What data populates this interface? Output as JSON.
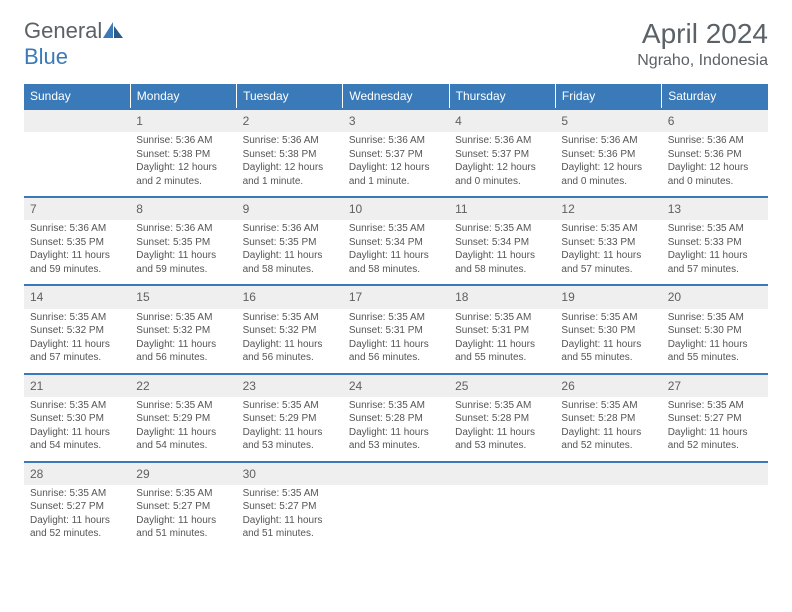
{
  "brand": {
    "part1": "General",
    "part2": "Blue"
  },
  "title": "April 2024",
  "location": "Ngraho, Indonesia",
  "colors": {
    "header_bg": "#3a7ab8",
    "header_text": "#ffffff",
    "daynum_bg": "#efefef",
    "text": "#555555",
    "title_text": "#5a6268",
    "page_bg": "#ffffff"
  },
  "typography": {
    "month_title_fontsize": 28,
    "location_fontsize": 16,
    "weekday_fontsize": 12,
    "daynum_fontsize": 12,
    "cell_fontsize": 10
  },
  "weekdays": [
    "Sunday",
    "Monday",
    "Tuesday",
    "Wednesday",
    "Thursday",
    "Friday",
    "Saturday"
  ],
  "weeks": [
    [
      null,
      {
        "n": "1",
        "sr": "Sunrise: 5:36 AM",
        "ss": "Sunset: 5:38 PM",
        "d1": "Daylight: 12 hours",
        "d2": "and 2 minutes."
      },
      {
        "n": "2",
        "sr": "Sunrise: 5:36 AM",
        "ss": "Sunset: 5:38 PM",
        "d1": "Daylight: 12 hours",
        "d2": "and 1 minute."
      },
      {
        "n": "3",
        "sr": "Sunrise: 5:36 AM",
        "ss": "Sunset: 5:37 PM",
        "d1": "Daylight: 12 hours",
        "d2": "and 1 minute."
      },
      {
        "n": "4",
        "sr": "Sunrise: 5:36 AM",
        "ss": "Sunset: 5:37 PM",
        "d1": "Daylight: 12 hours",
        "d2": "and 0 minutes."
      },
      {
        "n": "5",
        "sr": "Sunrise: 5:36 AM",
        "ss": "Sunset: 5:36 PM",
        "d1": "Daylight: 12 hours",
        "d2": "and 0 minutes."
      },
      {
        "n": "6",
        "sr": "Sunrise: 5:36 AM",
        "ss": "Sunset: 5:36 PM",
        "d1": "Daylight: 12 hours",
        "d2": "and 0 minutes."
      }
    ],
    [
      {
        "n": "7",
        "sr": "Sunrise: 5:36 AM",
        "ss": "Sunset: 5:35 PM",
        "d1": "Daylight: 11 hours",
        "d2": "and 59 minutes."
      },
      {
        "n": "8",
        "sr": "Sunrise: 5:36 AM",
        "ss": "Sunset: 5:35 PM",
        "d1": "Daylight: 11 hours",
        "d2": "and 59 minutes."
      },
      {
        "n": "9",
        "sr": "Sunrise: 5:36 AM",
        "ss": "Sunset: 5:35 PM",
        "d1": "Daylight: 11 hours",
        "d2": "and 58 minutes."
      },
      {
        "n": "10",
        "sr": "Sunrise: 5:35 AM",
        "ss": "Sunset: 5:34 PM",
        "d1": "Daylight: 11 hours",
        "d2": "and 58 minutes."
      },
      {
        "n": "11",
        "sr": "Sunrise: 5:35 AM",
        "ss": "Sunset: 5:34 PM",
        "d1": "Daylight: 11 hours",
        "d2": "and 58 minutes."
      },
      {
        "n": "12",
        "sr": "Sunrise: 5:35 AM",
        "ss": "Sunset: 5:33 PM",
        "d1": "Daylight: 11 hours",
        "d2": "and 57 minutes."
      },
      {
        "n": "13",
        "sr": "Sunrise: 5:35 AM",
        "ss": "Sunset: 5:33 PM",
        "d1": "Daylight: 11 hours",
        "d2": "and 57 minutes."
      }
    ],
    [
      {
        "n": "14",
        "sr": "Sunrise: 5:35 AM",
        "ss": "Sunset: 5:32 PM",
        "d1": "Daylight: 11 hours",
        "d2": "and 57 minutes."
      },
      {
        "n": "15",
        "sr": "Sunrise: 5:35 AM",
        "ss": "Sunset: 5:32 PM",
        "d1": "Daylight: 11 hours",
        "d2": "and 56 minutes."
      },
      {
        "n": "16",
        "sr": "Sunrise: 5:35 AM",
        "ss": "Sunset: 5:32 PM",
        "d1": "Daylight: 11 hours",
        "d2": "and 56 minutes."
      },
      {
        "n": "17",
        "sr": "Sunrise: 5:35 AM",
        "ss": "Sunset: 5:31 PM",
        "d1": "Daylight: 11 hours",
        "d2": "and 56 minutes."
      },
      {
        "n": "18",
        "sr": "Sunrise: 5:35 AM",
        "ss": "Sunset: 5:31 PM",
        "d1": "Daylight: 11 hours",
        "d2": "and 55 minutes."
      },
      {
        "n": "19",
        "sr": "Sunrise: 5:35 AM",
        "ss": "Sunset: 5:30 PM",
        "d1": "Daylight: 11 hours",
        "d2": "and 55 minutes."
      },
      {
        "n": "20",
        "sr": "Sunrise: 5:35 AM",
        "ss": "Sunset: 5:30 PM",
        "d1": "Daylight: 11 hours",
        "d2": "and 55 minutes."
      }
    ],
    [
      {
        "n": "21",
        "sr": "Sunrise: 5:35 AM",
        "ss": "Sunset: 5:30 PM",
        "d1": "Daylight: 11 hours",
        "d2": "and 54 minutes."
      },
      {
        "n": "22",
        "sr": "Sunrise: 5:35 AM",
        "ss": "Sunset: 5:29 PM",
        "d1": "Daylight: 11 hours",
        "d2": "and 54 minutes."
      },
      {
        "n": "23",
        "sr": "Sunrise: 5:35 AM",
        "ss": "Sunset: 5:29 PM",
        "d1": "Daylight: 11 hours",
        "d2": "and 53 minutes."
      },
      {
        "n": "24",
        "sr": "Sunrise: 5:35 AM",
        "ss": "Sunset: 5:28 PM",
        "d1": "Daylight: 11 hours",
        "d2": "and 53 minutes."
      },
      {
        "n": "25",
        "sr": "Sunrise: 5:35 AM",
        "ss": "Sunset: 5:28 PM",
        "d1": "Daylight: 11 hours",
        "d2": "and 53 minutes."
      },
      {
        "n": "26",
        "sr": "Sunrise: 5:35 AM",
        "ss": "Sunset: 5:28 PM",
        "d1": "Daylight: 11 hours",
        "d2": "and 52 minutes."
      },
      {
        "n": "27",
        "sr": "Sunrise: 5:35 AM",
        "ss": "Sunset: 5:27 PM",
        "d1": "Daylight: 11 hours",
        "d2": "and 52 minutes."
      }
    ],
    [
      {
        "n": "28",
        "sr": "Sunrise: 5:35 AM",
        "ss": "Sunset: 5:27 PM",
        "d1": "Daylight: 11 hours",
        "d2": "and 52 minutes."
      },
      {
        "n": "29",
        "sr": "Sunrise: 5:35 AM",
        "ss": "Sunset: 5:27 PM",
        "d1": "Daylight: 11 hours",
        "d2": "and 51 minutes."
      },
      {
        "n": "30",
        "sr": "Sunrise: 5:35 AM",
        "ss": "Sunset: 5:27 PM",
        "d1": "Daylight: 11 hours",
        "d2": "and 51 minutes."
      },
      null,
      null,
      null,
      null
    ]
  ]
}
